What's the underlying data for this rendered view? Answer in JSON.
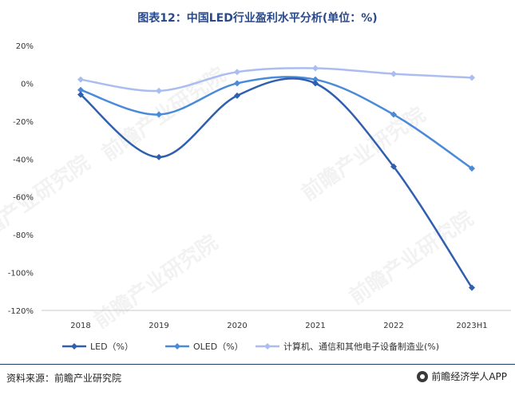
{
  "title": "图表12：中国LED行业盈利水平分析(单位：%)",
  "source": "资料来源：前瞻产业研究院",
  "brand": "前瞻经济学人APP",
  "watermark": "前瞻产业研究院",
  "chart_data": {
    "type": "line",
    "categories": [
      "2018",
      "2019",
      "2020",
      "2021",
      "2022",
      "2023H1"
    ],
    "yticks": [
      "20%",
      "0%",
      "-20%",
      "-40%",
      "-60%",
      "-80%",
      "-100%",
      "-120%"
    ],
    "ylim": [
      -120,
      20
    ],
    "grid": false,
    "legend_position": "bottom",
    "series": [
      {
        "name": "LED（%）",
        "color": "#2f5fae",
        "values": [
          -6,
          -39,
          -6.5,
          0,
          -44,
          -108
        ]
      },
      {
        "name": "OLED（%）",
        "color": "#4a8ad8",
        "values": [
          -3.5,
          -16.5,
          0,
          2,
          -16.5,
          -45
        ]
      },
      {
        "name": "计算机、通信和其他电子设备制造业(%)",
        "color": "#a9bdf0",
        "values": [
          2,
          -4,
          6,
          8,
          5,
          3
        ]
      }
    ]
  }
}
